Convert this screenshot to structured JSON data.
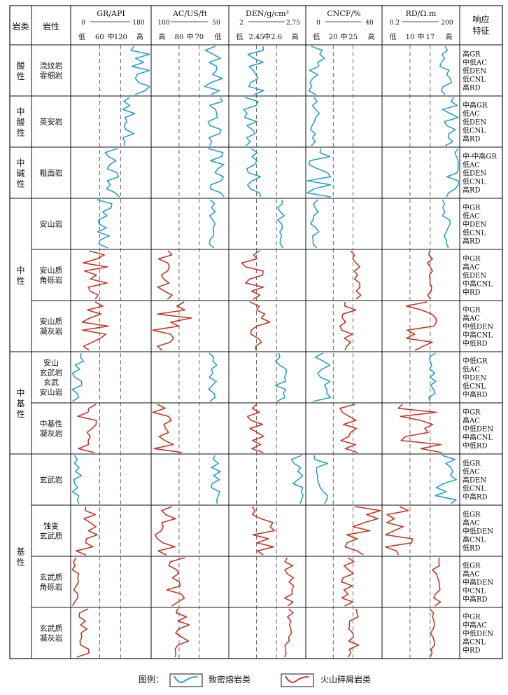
{
  "header": {
    "rock_class": "岩类",
    "rock_type": "岩性",
    "response": "响应\n特征"
  },
  "tracks": [
    {
      "id": "gr",
      "title": "GR/API",
      "scale_left": "0",
      "scale_right": "180",
      "ticks": [
        "低",
        "60",
        "中",
        "120",
        "高"
      ]
    },
    {
      "id": "ac",
      "title": "AC/US/ft",
      "scale_left": "100",
      "scale_right": "50",
      "ticks": [
        "高",
        "80",
        "中",
        "70",
        "低"
      ]
    },
    {
      "id": "den",
      "title": "DEN/g/cm³",
      "scale_left": "2",
      "scale_right": "2.75",
      "ticks": [
        "低",
        "2.45",
        "中",
        "2.6",
        "高"
      ]
    },
    {
      "id": "cncf",
      "title": "CNCF/%",
      "scale_left": "0",
      "scale_right": "40",
      "ticks": [
        "低",
        "20",
        "中",
        "25",
        "高"
      ]
    },
    {
      "id": "rd",
      "title": "RD/Ω.m",
      "scale_left": "0.2",
      "scale_right": "200",
      "ticks": [
        "低",
        "10",
        "中",
        "17",
        "高"
      ]
    }
  ],
  "groups": [
    {
      "label": "酸\n性",
      "rows": [
        0
      ]
    },
    {
      "label": "中\n酸\n性",
      "rows": [
        1
      ]
    },
    {
      "label": "中\n碱\n性",
      "rows": [
        2
      ]
    },
    {
      "label": "中\n性",
      "rows": [
        3,
        4,
        5
      ]
    },
    {
      "label": "中\n基\n性",
      "rows": [
        6,
        7
      ]
    },
    {
      "label": "基\n性",
      "rows": [
        8,
        9,
        10,
        11
      ]
    }
  ],
  "rows": [
    {
      "lith": "流纹岩\n霏细岩",
      "type": "lava",
      "response": [
        "高GR",
        "中低AC",
        "低DEN",
        "低CNL",
        "高RD"
      ]
    },
    {
      "lith": "英安岩",
      "type": "lava",
      "response": [
        "中高GR",
        "低AC",
        "低DEN",
        "低CNL",
        "高RD"
      ]
    },
    {
      "lith": "粗面岩",
      "type": "lava",
      "response": [
        "中-中高GR",
        "低AC",
        "低DEN",
        "低CNL",
        "高RD"
      ]
    },
    {
      "lith": "安山岩",
      "type": "lava",
      "response": [
        "中GR",
        "低AC",
        "中DEN",
        "低CNL",
        "高RD"
      ]
    },
    {
      "lith": "安山质\n角砾岩",
      "type": "clastic",
      "response": [
        "中GR",
        "高AC",
        "低DEN",
        "中高CNL",
        "中RD"
      ]
    },
    {
      "lith": "安山质\n凝灰岩",
      "type": "clastic",
      "response": [
        "中GR",
        "高AC",
        "中低DEN",
        "中高CNL",
        "中低RD"
      ]
    },
    {
      "lith": "安山\n玄武岩\n玄武\n安山岩",
      "type": "lava",
      "response": [
        "中低GR",
        "低AC",
        "中DEN",
        "低CNL",
        "中高RD"
      ]
    },
    {
      "lith": "中基性\n凝灰岩",
      "type": "clastic",
      "response": [
        "中GR",
        "高AC",
        "中低DEN",
        "中高CNL",
        "中低RD"
      ]
    },
    {
      "lith": "玄武岩",
      "type": "lava",
      "response": [
        "低GR",
        "低AC",
        "高DEN",
        "低CNL",
        "中高RD"
      ]
    },
    {
      "lith": "蚀变\n玄武质",
      "type": "clastic",
      "response": [
        "低GR",
        "高AC",
        "中低DEN",
        "高CNL",
        "低RD"
      ]
    },
    {
      "lith": "玄武质\n角砾岩",
      "type": "clastic",
      "response": [
        "低GR",
        "高AC",
        "中高DEN",
        "中CNL",
        "中高RD"
      ]
    },
    {
      "lith": "玄武质\n凝灰岩",
      "type": "clastic",
      "response": [
        "中GR",
        "中高AC",
        "中低DEN",
        "高CNL",
        "中RD"
      ]
    }
  ],
  "curves": {
    "gr": [
      [
        0.85,
        0.18
      ],
      [
        0.72,
        0.08
      ],
      [
        0.52,
        0.1
      ],
      [
        0.42,
        0.1
      ],
      [
        0.3,
        0.16
      ],
      [
        0.3,
        0.18
      ],
      [
        0.08,
        0.1
      ],
      [
        0.2,
        0.12
      ],
      [
        0.08,
        0.06
      ],
      [
        0.2,
        0.14
      ],
      [
        0.05,
        0.05
      ],
      [
        0.15,
        0.08
      ]
    ],
    "ac": [
      [
        0.8,
        0.12
      ],
      [
        0.82,
        0.1
      ],
      [
        0.83,
        0.12
      ],
      [
        0.78,
        0.06
      ],
      [
        0.2,
        0.15
      ],
      [
        0.25,
        0.3
      ],
      [
        0.8,
        0.06
      ],
      [
        0.2,
        0.25
      ],
      [
        0.82,
        0.08
      ],
      [
        0.2,
        0.15
      ],
      [
        0.32,
        0.12
      ],
      [
        0.4,
        0.1
      ]
    ],
    "den": [
      [
        0.35,
        0.12
      ],
      [
        0.3,
        0.12
      ],
      [
        0.32,
        0.1
      ],
      [
        0.68,
        0.05
      ],
      [
        0.3,
        0.15
      ],
      [
        0.4,
        0.15
      ],
      [
        0.68,
        0.08
      ],
      [
        0.35,
        0.12
      ],
      [
        0.88,
        0.12
      ],
      [
        0.45,
        0.15
      ],
      [
        0.8,
        0.08
      ],
      [
        0.78,
        0.06
      ]
    ],
    "cncf": [
      [
        0.15,
        0.12
      ],
      [
        0.12,
        0.08
      ],
      [
        0.15,
        0.18
      ],
      [
        0.1,
        0.08
      ],
      [
        0.65,
        0.08
      ],
      [
        0.55,
        0.12
      ],
      [
        0.2,
        0.15
      ],
      [
        0.55,
        0.15
      ],
      [
        0.2,
        0.1
      ],
      [
        0.75,
        0.25
      ],
      [
        0.55,
        0.1
      ],
      [
        0.62,
        0.08
      ]
    ],
    "rd": [
      [
        0.82,
        0.08
      ],
      [
        0.88,
        0.12
      ],
      [
        0.95,
        0.12
      ],
      [
        0.82,
        0.06
      ],
      [
        0.62,
        0.04
      ],
      [
        0.5,
        0.3
      ],
      [
        0.65,
        0.05
      ],
      [
        0.5,
        0.3
      ],
      [
        0.82,
        0.14
      ],
      [
        0.2,
        0.2
      ],
      [
        0.7,
        0.06
      ],
      [
        0.65,
        0.04
      ]
    ]
  },
  "legend": {
    "title": "图例：",
    "lava": "致密熔岩类",
    "clastic": "火山碎屑岩类",
    "lava_color": "#2aa0c8",
    "clastic_color": "#c0392b"
  }
}
